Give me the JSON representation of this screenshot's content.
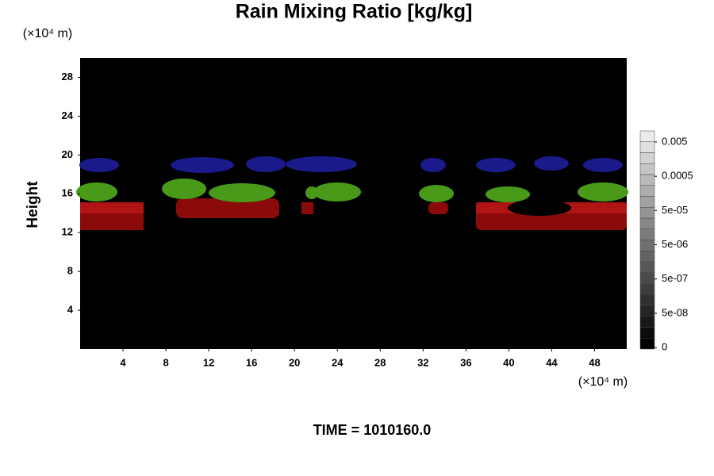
{
  "chart_data": {
    "type": "heatmap",
    "title": "Rain Mixing Ratio [kg/kg]",
    "y_label": "Height",
    "x_unit": "(×10⁴ m)",
    "y_unit": "(×10⁴ m)",
    "footer": "TIME = 1010160.0",
    "xlim": [
      0,
      51
    ],
    "xticks": [
      4,
      8,
      12,
      16,
      20,
      24,
      28,
      32,
      36,
      40,
      44,
      48
    ],
    "ylim": [
      0,
      30
    ],
    "yticks": [
      4,
      8,
      12,
      16,
      20,
      24,
      28
    ],
    "colorbar_ticks": [
      {
        "value": 0,
        "label": "0"
      },
      {
        "value": 5e-08,
        "label": "5e-08"
      },
      {
        "value": 5e-07,
        "label": "5e-07"
      },
      {
        "value": 5e-06,
        "label": "5e-06"
      },
      {
        "value": 5e-05,
        "label": "5e-05"
      },
      {
        "value": 0.0005,
        "label": "0.0005"
      },
      {
        "value": 0.005,
        "label": "0.005"
      }
    ]
  }
}
